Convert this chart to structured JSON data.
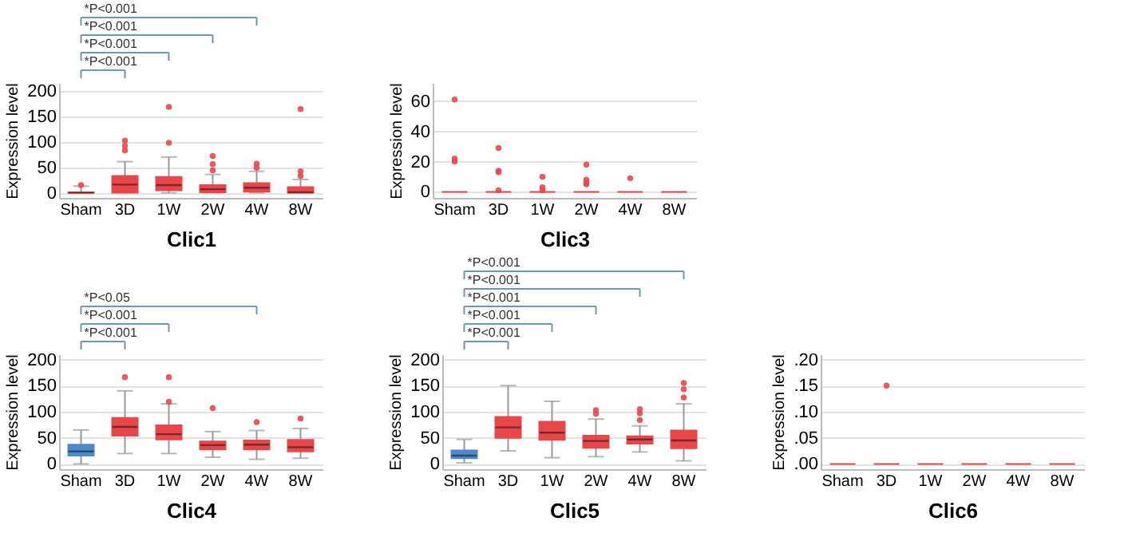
{
  "chart_data": [
    {
      "type": "box",
      "xlabel": "Clic1",
      "ylabel": "Expression level",
      "categories": [
        "Sham",
        "3D",
        "1W",
        "2W",
        "4W",
        "8W"
      ],
      "colors": [
        "#e8474a",
        "#e8474a",
        "#e8474a",
        "#e8474a",
        "#e8474a",
        "#e8474a"
      ],
      "boxes": [
        {
          "low": 0,
          "q1": 0,
          "median": 0,
          "q3": 1,
          "high": 13,
          "outliers": [
            15
          ]
        },
        {
          "low": 0,
          "q1": 0,
          "median": 16,
          "q3": 33,
          "high": 61,
          "outliers": [
            83,
            92,
            102
          ]
        },
        {
          "low": 0,
          "q1": 5,
          "median": 15,
          "q3": 31,
          "high": 70,
          "outliers": [
            98,
            168
          ]
        },
        {
          "low": 0,
          "q1": 1,
          "median": 7,
          "q3": 15,
          "high": 36,
          "outliers": [
            44,
            56,
            72
          ]
        },
        {
          "low": 0,
          "q1": 2,
          "median": 10,
          "q3": 19,
          "high": 42,
          "outliers": [
            49,
            57
          ]
        },
        {
          "low": 0,
          "q1": 0,
          "median": 1,
          "q3": 11,
          "high": 26,
          "outliers": [
            33,
            42,
            164
          ]
        }
      ],
      "ylim": [
        -10,
        215
      ],
      "yticks": [
        0,
        50,
        100,
        150,
        200
      ],
      "grid": "y",
      "annotations": [
        "*P<0.001",
        "*P<0.001",
        "*P<0.001",
        "*P<0.001"
      ]
    },
    {
      "type": "box",
      "xlabel": "Clic3",
      "ylabel": "Expression level",
      "categories": [
        "Sham",
        "3D",
        "1W",
        "2W",
        "4W",
        "8W"
      ],
      "colors": [
        "#e8474a",
        "#e8474a",
        "#e8474a",
        "#e8474a",
        "#e8474a",
        "#e8474a"
      ],
      "boxes": [
        {
          "low": 0,
          "q1": 0,
          "median": 0,
          "q3": 0,
          "high": 0,
          "outliers": [
            20,
            22,
            61
          ]
        },
        {
          "low": 0,
          "q1": 0,
          "median": 0,
          "q3": 0,
          "high": 0,
          "outliers": [
            1,
            13,
            14,
            29
          ]
        },
        {
          "low": 0,
          "q1": 0,
          "median": 0,
          "q3": 0,
          "high": 0,
          "outliers": [
            1,
            3,
            10
          ]
        },
        {
          "low": 0,
          "q1": 0,
          "median": 0,
          "q3": 0,
          "high": 0,
          "outliers": [
            5,
            6,
            8,
            18
          ]
        },
        {
          "low": 0,
          "q1": 0,
          "median": 0,
          "q3": 0,
          "high": 0,
          "outliers": [
            9
          ]
        },
        {
          "low": 0,
          "q1": 0,
          "median": 0,
          "q3": 0,
          "high": 0
        }
      ],
      "ylim": [
        -4,
        72
      ],
      "yticks": [
        0,
        20,
        40,
        60
      ],
      "grid": "y"
    },
    {
      "type": "box",
      "xlabel": "Clic4",
      "ylabel": "Expression level",
      "categories": [
        "Sham",
        "3D",
        "1W",
        "2W",
        "4W",
        "8W"
      ],
      "colors": [
        "#4d8acb",
        "#e8474a",
        "#e8474a",
        "#e8474a",
        "#e8474a",
        "#e8474a"
      ],
      "boxes": [
        {
          "low": 0,
          "q1": 16,
          "median": 24,
          "q3": 37,
          "high": 65
        },
        {
          "low": 20,
          "q1": 54,
          "median": 71,
          "q3": 88,
          "high": 140,
          "outliers": [
            166
          ]
        },
        {
          "low": 20,
          "q1": 47,
          "median": 57,
          "q3": 74,
          "high": 115,
          "outliers": [
            119,
            166
          ]
        },
        {
          "low": 13,
          "q1": 28,
          "median": 36,
          "q3": 43,
          "high": 62,
          "outliers": [
            107
          ]
        },
        {
          "low": 9,
          "q1": 28,
          "median": 37,
          "q3": 45,
          "high": 64,
          "outliers": [
            80
          ]
        },
        {
          "low": 11,
          "q1": 24,
          "median": 32,
          "q3": 46,
          "high": 68,
          "outliers": [
            87
          ]
        }
      ],
      "ylim": [
        -10,
        210
      ],
      "yticks": [
        0,
        50,
        100,
        150,
        200
      ],
      "grid": "y",
      "annotations": [
        "*P<0.001",
        "*P<0.001",
        "*P<0.05"
      ]
    },
    {
      "type": "box",
      "xlabel": "Clic5",
      "ylabel": "Expression level",
      "categories": [
        "Sham",
        "3D",
        "1W",
        "2W",
        "4W",
        "8W"
      ],
      "colors": [
        "#4d8acb",
        "#e8474a",
        "#e8474a",
        "#e8474a",
        "#e8474a",
        "#e8474a"
      ],
      "boxes": [
        {
          "low": 2,
          "q1": 11,
          "median": 16,
          "q3": 26,
          "high": 47
        },
        {
          "low": 25,
          "q1": 50,
          "median": 70,
          "q3": 90,
          "high": 150
        },
        {
          "low": 12,
          "q1": 46,
          "median": 60,
          "q3": 81,
          "high": 120
        },
        {
          "low": 14,
          "q1": 31,
          "median": 44,
          "q3": 54,
          "high": 86,
          "outliers": [
            96,
            103
          ]
        },
        {
          "low": 23,
          "q1": 39,
          "median": 47,
          "q3": 53,
          "high": 73,
          "outliers": [
            84,
            97,
            105
          ]
        },
        {
          "low": 6,
          "q1": 30,
          "median": 45,
          "q3": 64,
          "high": 115,
          "outliers": [
            127,
            143,
            155
          ]
        }
      ],
      "ylim": [
        -10,
        210
      ],
      "yticks": [
        0,
        50,
        100,
        150,
        200
      ],
      "grid": "y",
      "annotations": [
        "*P<0.001",
        "*P<0.001",
        "*P<0.001",
        "*P<0.001",
        "*P<0.001"
      ]
    },
    {
      "type": "box",
      "xlabel": "Clic6",
      "ylabel": "Expression level",
      "categories": [
        "Sham",
        "3D",
        "1W",
        "2W",
        "4W",
        "8W"
      ],
      "colors": [
        "#e8474a",
        "#e8474a",
        "#e8474a",
        "#e8474a",
        "#e8474a",
        "#e8474a"
      ],
      "boxes": [
        {
          "low": 0,
          "q1": 0,
          "median": 0,
          "q3": 0,
          "high": 0
        },
        {
          "low": 0,
          "q1": 0,
          "median": 0,
          "q3": 0,
          "high": 0,
          "outliers": [
            0.15
          ]
        },
        {
          "low": 0,
          "q1": 0,
          "median": 0,
          "q3": 0,
          "high": 0
        },
        {
          "low": 0,
          "q1": 0,
          "median": 0,
          "q3": 0,
          "high": 0
        },
        {
          "low": 0,
          "q1": 0,
          "median": 0,
          "q3": 0,
          "high": 0
        },
        {
          "low": 0,
          "q1": 0,
          "median": 0,
          "q3": 0,
          "high": 0
        }
      ],
      "ylim": [
        -0.01,
        0.21
      ],
      "yticks": [
        {
          "value": 0,
          "label": ".00"
        },
        {
          "value": 0.05,
          "label": ".05"
        },
        {
          "value": 0.1,
          "label": ".10"
        },
        {
          "value": 0.15,
          "label": ".15"
        },
        {
          "value": 0.2,
          "label": ".20"
        }
      ],
      "grid": "y"
    }
  ]
}
